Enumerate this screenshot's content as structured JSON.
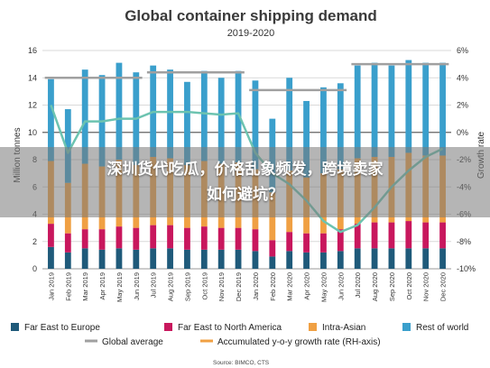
{
  "overlay": {
    "headline": "深圳货代吃瓜，价格乱象频发，跨境卖家如何避坑？"
  },
  "chart_data": {
    "type": "bar",
    "title": "Global container shipping demand",
    "subtitle": "2019-2020",
    "ylabel": "Million tonnes",
    "y2label": "Growth rate",
    "ylim": [
      0,
      16
    ],
    "y2lim": [
      -10,
      6
    ],
    "yticks": [
      0,
      2,
      4,
      6,
      8,
      10,
      12,
      14,
      16
    ],
    "y2ticks": [
      "6%",
      "4%",
      "2%",
      "0%",
      "-2%",
      "-4%",
      "-6%",
      "-8%",
      "-10%"
    ],
    "categories": [
      "Jan 2019",
      "Feb 2019",
      "Mar 2019",
      "Apr 2019",
      "May 2019",
      "Jun 2019",
      "Jul 2019",
      "Aug 2019",
      "Sep 2019",
      "Oct 2019",
      "Nov 2019",
      "Dec 2019",
      "Jan 2020",
      "Feb 2020",
      "Mar 2020",
      "Apr 2020",
      "May 2020",
      "Jun 2020",
      "Jul 2020",
      "Aug 2020",
      "Sep 2020",
      "Oct 2020",
      "Nov 2020",
      "Dec 2020"
    ],
    "series": [
      {
        "name": "Far East to Europe",
        "color": "#1f5a7a",
        "values": [
          1.6,
          1.2,
          1.5,
          1.4,
          1.5,
          1.4,
          1.5,
          1.5,
          1.4,
          1.4,
          1.4,
          1.4,
          1.3,
          0.9,
          1.3,
          1.2,
          1.2,
          1.3,
          1.5,
          1.5,
          1.5,
          1.5,
          1.5,
          1.5
        ]
      },
      {
        "name": "Far East to North America",
        "color": "#c8175d",
        "values": [
          1.7,
          1.4,
          1.4,
          1.5,
          1.6,
          1.6,
          1.7,
          1.7,
          1.6,
          1.7,
          1.6,
          1.6,
          1.6,
          1.2,
          1.4,
          1.4,
          1.4,
          1.6,
          1.8,
          1.9,
          1.9,
          2.0,
          1.9,
          1.9
        ]
      },
      {
        "name": "Intra-Asian",
        "color": "#f0a043",
        "values": [
          4.6,
          3.7,
          4.8,
          4.6,
          4.9,
          4.6,
          5.0,
          4.9,
          4.6,
          4.8,
          4.7,
          4.8,
          4.4,
          3.5,
          4.5,
          4.1,
          4.4,
          4.4,
          4.8,
          4.8,
          4.8,
          5.0,
          4.9,
          4.9
        ]
      },
      {
        "name": "Rest of world",
        "color": "#3a9fcc",
        "values": [
          6.0,
          5.4,
          6.9,
          6.7,
          7.1,
          6.8,
          6.7,
          6.5,
          6.1,
          6.6,
          6.3,
          6.7,
          6.5,
          5.4,
          6.8,
          5.6,
          6.3,
          6.3,
          6.8,
          6.9,
          6.7,
          6.8,
          6.8,
          6.8
        ]
      }
    ],
    "global_average": {
      "name": "Global average",
      "color": "#a0a0a0",
      "segments": [
        {
          "from": 0,
          "to": 5,
          "value": 14.0
        },
        {
          "from": 6,
          "to": 11,
          "value": 14.4
        },
        {
          "from": 12,
          "to": 17,
          "value": 13.1
        },
        {
          "from": 18,
          "to": 23,
          "value": 15.0
        }
      ]
    },
    "growth_rate": {
      "name": "Accumulated y-o-y growth rate (RH-axis)",
      "color": "#6cc3b0",
      "values": [
        2.0,
        -1.5,
        0.8,
        0.8,
        1.0,
        1.0,
        1.5,
        1.5,
        1.5,
        1.4,
        1.3,
        1.4,
        -1.5,
        -3.0,
        -3.8,
        -5.0,
        -6.5,
        -7.3,
        -6.8,
        -5.5,
        -4.0,
        -2.8,
        -1.8,
        -1.2
      ]
    },
    "legend_position": "bottom",
    "grid": true,
    "source": "Source: BIMCO, CTS"
  }
}
